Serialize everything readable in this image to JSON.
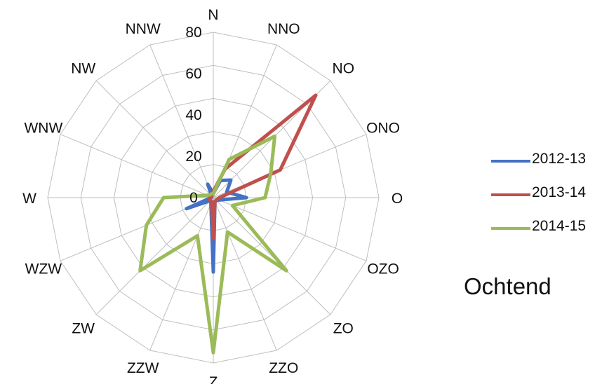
{
  "caption": "Ochtend",
  "chart_data": {
    "type": "radar",
    "directions": [
      "N",
      "NNO",
      "NO",
      "ONO",
      "O",
      "OZO",
      "ZO",
      "ZZO",
      "Z",
      "ZZW",
      "ZW",
      "WZW",
      "W",
      "WNW",
      "NW",
      "NNW"
    ],
    "rlim": [
      0,
      80
    ],
    "rticks": [
      "0",
      "20",
      "40",
      "60",
      "80"
    ],
    "grid": true,
    "legend_position": "right",
    "series": [
      {
        "name": "2012-13",
        "color": "#4472C4",
        "values": [
          2,
          9,
          12,
          7,
          16,
          3,
          2,
          2,
          36,
          3,
          2,
          14,
          1,
          1,
          1,
          7
        ]
      },
      {
        "name": "2013-14",
        "color": "#C0504D",
        "values": [
          3,
          15,
          70,
          35,
          3,
          2,
          2,
          2,
          20,
          2,
          2,
          2,
          2,
          1,
          1,
          2
        ]
      },
      {
        "name": "2014-15",
        "color": "#9BBB59",
        "values": [
          2,
          20,
          42,
          30,
          25,
          10,
          50,
          18,
          75,
          20,
          50,
          35,
          24,
          3,
          2,
          2
        ]
      }
    ]
  }
}
